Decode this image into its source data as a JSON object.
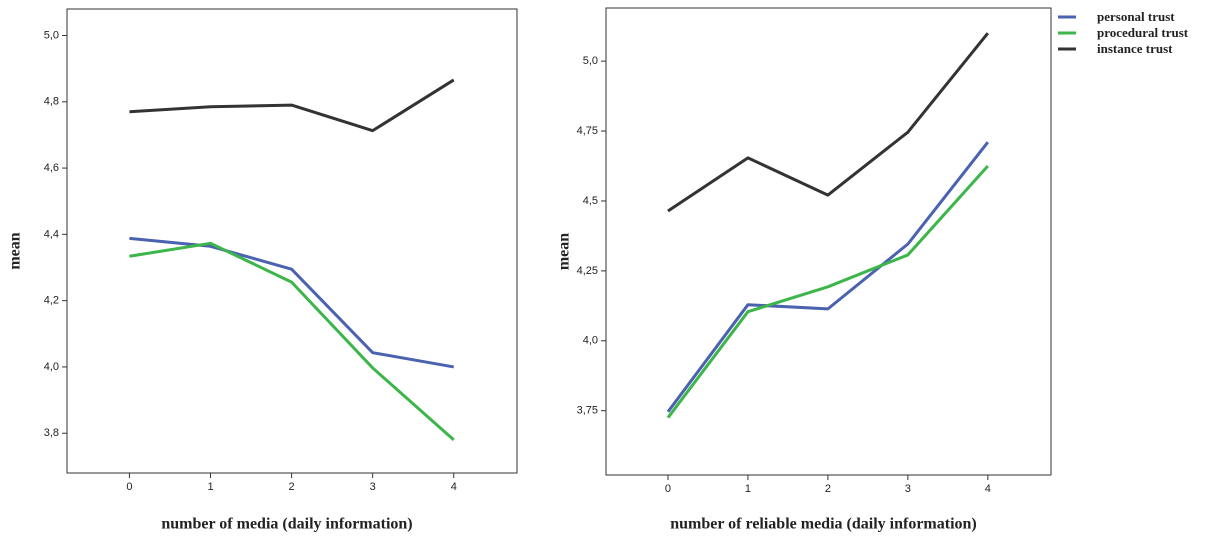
{
  "chart_data": [
    {
      "type": "line",
      "xlabel": "number of media (daily information)",
      "ylabel": "mean",
      "x": [
        0,
        1,
        2,
        3,
        4
      ],
      "xlim": [
        -0.77,
        4.78
      ],
      "xticks": [
        0,
        1,
        2,
        3,
        4
      ],
      "ylim": [
        3.68,
        5.08
      ],
      "yticks": [
        {
          "value": 3.8,
          "label": "3,8"
        },
        {
          "value": 4.0,
          "label": "4,0"
        },
        {
          "value": 4.2,
          "label": "4,2"
        },
        {
          "value": 4.4,
          "label": "4,4"
        },
        {
          "value": 4.6,
          "label": "4,6"
        },
        {
          "value": 4.8,
          "label": "4,8"
        },
        {
          "value": 5.0,
          "label": "5,0"
        }
      ],
      "series": [
        {
          "color": "#4a62b0",
          "values": [
            4.388,
            4.364,
            4.295,
            4.043,
            4.0
          ]
        },
        {
          "color": "#3cb54a",
          "values": [
            4.334,
            4.373,
            4.256,
            3.997,
            3.78
          ]
        },
        {
          "color": "#333333",
          "values": [
            4.77,
            4.785,
            4.79,
            4.713,
            4.866
          ]
        }
      ]
    },
    {
      "type": "line",
      "xlabel": "number of reliable media (daily information)",
      "ylabel": "mean",
      "x": [
        0,
        1,
        2,
        3,
        4
      ],
      "xlim": [
        -0.775,
        4.79
      ],
      "xticks": [
        0,
        1,
        2,
        3,
        4
      ],
      "ylim": [
        3.52,
        5.19
      ],
      "yticks": [
        {
          "value": 3.75,
          "label": "3,75"
        },
        {
          "value": 4.0,
          "label": "4,0"
        },
        {
          "value": 4.25,
          "label": "4,25"
        },
        {
          "value": 4.5,
          "label": "4,5"
        },
        {
          "value": 4.75,
          "label": "4,75"
        },
        {
          "value": 5.0,
          "label": "5,0"
        }
      ],
      "legend": "outside-upper-right",
      "series": [
        {
          "name": "personal trust",
          "color": "#4a62b0",
          "values": [
            3.746,
            4.129,
            4.114,
            4.346,
            4.71
          ]
        },
        {
          "name": "procedural trust",
          "color": "#3cb54a",
          "values": [
            3.725,
            4.104,
            4.193,
            4.307,
            4.625
          ]
        },
        {
          "name": "instance  trust",
          "color": "#333333",
          "values": [
            4.464,
            4.654,
            4.521,
            4.746,
            5.1
          ]
        }
      ]
    }
  ]
}
